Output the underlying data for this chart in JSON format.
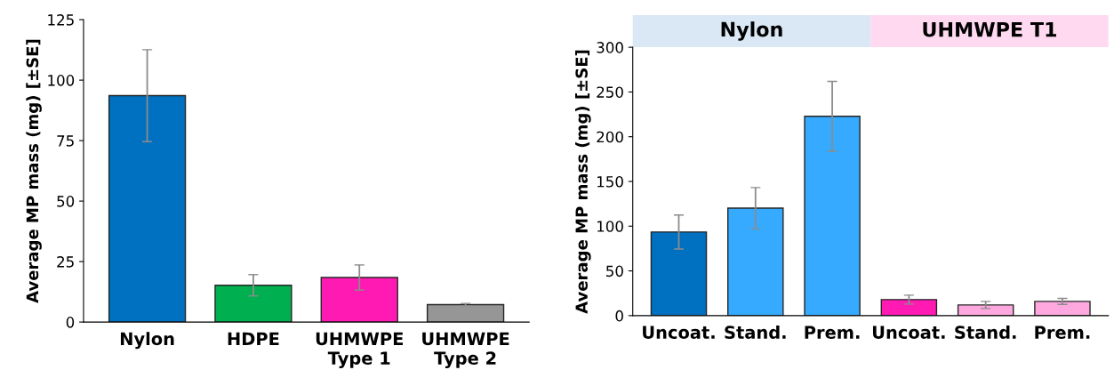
{
  "chart_data": [
    {
      "type": "bar",
      "ylabel": "Average MP mass (mg) [±SE]",
      "categories": [
        "Nylon",
        "HDPE",
        "UHMWPE\nType 1",
        "UHMWPE\nType 2"
      ],
      "values": [
        93.6,
        15.2,
        18.4,
        7.2
      ],
      "errors": [
        19,
        4.4,
        5.2,
        0.5
      ],
      "colors": [
        "#0070c0",
        "#00b050",
        "#ff1ab3",
        "#969696"
      ],
      "ylim": [
        0,
        125
      ],
      "yticks": [
        0,
        25,
        50,
        75,
        100,
        125
      ],
      "grid": false,
      "legend": false
    },
    {
      "type": "bar",
      "ylabel": "Average MP mass (mg) [±SE]",
      "categories": [
        "Uncoat.",
        "Stand.",
        "Prem.",
        "Uncoat.",
        "Stand.",
        "Prem."
      ],
      "values": [
        93.5,
        120.2,
        222.8,
        17.9,
        11.9,
        15.9
      ],
      "errors": [
        19,
        23,
        39,
        5,
        4,
        3.4
      ],
      "colors": [
        "#0070c0",
        "#35aaff",
        "#35aaff",
        "#ff1ab3",
        "#ffa8e0",
        "#ffa8e0"
      ],
      "annotations": [
        "Nylon",
        "UHMWPE T1"
      ],
      "ylim": [
        0,
        300
      ],
      "yticks": [
        0,
        50,
        100,
        150,
        200,
        250,
        300
      ],
      "grid": false,
      "legend": false
    }
  ]
}
